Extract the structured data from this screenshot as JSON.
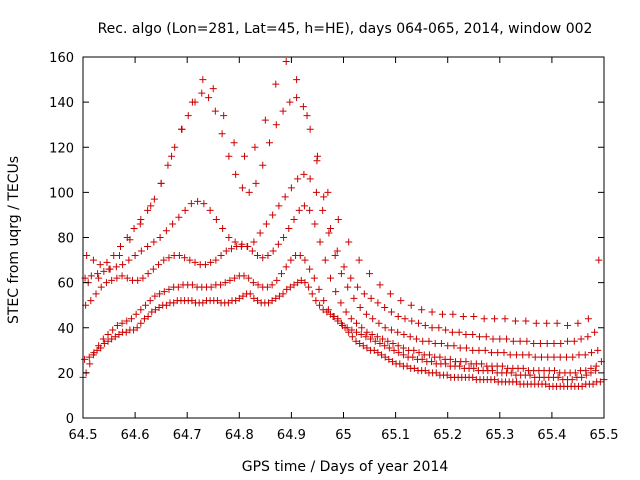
{
  "chart_data": {
    "type": "scatter",
    "title": "Rec. algo (Lon=281, Lat=45, h=HE), days 064-065, 2014, window 002",
    "xlabel": "GPS time / Days of year 2014",
    "ylabel": "STEC from uqrg / TECUs",
    "xlim": [
      64.5,
      65.5
    ],
    "ylim": [
      0,
      160
    ],
    "x_ticks": [
      "64.5",
      "64.6",
      "64.7",
      "64.8",
      "64.9",
      "65",
      "65.1",
      "65.2",
      "65.3",
      "65.4",
      "65.5"
    ],
    "y_ticks": [
      "0",
      "20",
      "40",
      "60",
      "80",
      "100",
      "120",
      "140",
      "160"
    ],
    "grid": false,
    "marker": "plus",
    "marker_color": "#cc0000",
    "series": [
      {
        "x": [
          64.5,
          64.506,
          64.513,
          64.52,
          64.527,
          64.534,
          64.541,
          64.548,
          64.555,
          64.562,
          64.569,
          64.576,
          64.583,
          64.59,
          64.597,
          64.604,
          64.611,
          64.618,
          64.625,
          64.632,
          64.639,
          64.646,
          64.653,
          64.66,
          64.667,
          64.674,
          64.681,
          64.688,
          64.695,
          64.702,
          64.709,
          64.716,
          64.723,
          64.73,
          64.737,
          64.744,
          64.751,
          64.758,
          64.765,
          64.772,
          64.779,
          64.786,
          64.793,
          64.8,
          64.807,
          64.814,
          64.821,
          64.828,
          64.835,
          64.842,
          64.849,
          64.856,
          64.863,
          64.87,
          64.877,
          64.884,
          64.891,
          64.898,
          64.905,
          64.912,
          64.919,
          64.926,
          64.933,
          64.94,
          64.947,
          64.954,
          64.961,
          64.968,
          64.975,
          64.982,
          64.989,
          64.996,
          65.003,
          65.01,
          65.017,
          65.024,
          65.031,
          65.038,
          65.045,
          65.052,
          65.059,
          65.066,
          65.073,
          65.08,
          65.087,
          65.094,
          65.101,
          65.108,
          65.115,
          65.122,
          65.129,
          65.136,
          65.143,
          65.15,
          65.157,
          65.164,
          65.171,
          65.178,
          65.185,
          65.192,
          65.199,
          65.206,
          65.213,
          65.22,
          65.227,
          65.234,
          65.241,
          65.248,
          65.255,
          65.262,
          65.269,
          65.276,
          65.283,
          65.29,
          65.297,
          65.304,
          65.311,
          65.318,
          65.325,
          65.332,
          65.339,
          65.346,
          65.353,
          65.36,
          65.367,
          65.374,
          65.381,
          65.388,
          65.395,
          65.402,
          65.409,
          65.416,
          65.423,
          65.43,
          65.437,
          65.444,
          65.451,
          65.458,
          65.465,
          65.472,
          65.479,
          65.486,
          65.493,
          65.5
        ],
        "y": [
          18,
          20,
          24,
          28,
          30,
          31,
          33,
          34,
          35,
          36,
          37,
          38,
          38,
          39,
          39,
          40,
          42,
          44,
          45,
          47,
          48,
          49,
          50,
          50,
          51,
          51,
          52,
          52,
          52,
          52,
          52,
          51,
          51,
          51,
          52,
          52,
          52,
          52,
          51,
          51,
          51,
          52,
          52,
          53,
          54,
          55,
          55,
          53,
          52,
          51,
          51,
          51,
          52,
          53,
          54,
          55,
          57,
          58,
          59,
          60,
          61,
          60,
          58,
          55,
          52,
          50,
          48,
          47,
          46,
          45,
          44,
          42,
          40,
          38,
          36,
          34,
          33,
          32,
          31,
          30,
          30,
          29,
          28,
          27,
          26,
          25,
          24,
          24,
          23,
          23,
          22,
          22,
          21,
          21,
          21,
          20,
          20,
          20,
          19,
          19,
          19,
          18,
          18,
          18,
          18,
          18,
          18,
          18,
          17,
          17,
          17,
          17,
          17,
          17,
          16,
          16,
          16,
          16,
          16,
          16,
          15,
          15,
          15,
          15,
          15,
          15,
          15,
          15,
          14,
          14,
          14,
          14,
          14,
          14,
          14,
          14,
          14,
          14,
          15,
          15,
          15,
          16,
          16,
          17
        ]
      },
      {
        "x": [
          64.503,
          64.512,
          64.521,
          64.53,
          64.539,
          64.548,
          64.557,
          64.566,
          64.575,
          64.584,
          64.593,
          64.602,
          64.611,
          64.62,
          64.629,
          64.638,
          64.647,
          64.656,
          64.665,
          64.674,
          64.683,
          64.692,
          64.701,
          64.71,
          64.719,
          64.728,
          64.737,
          64.746,
          64.755,
          64.764,
          64.773,
          64.782,
          64.791,
          64.8,
          64.809,
          64.818,
          64.827,
          64.836,
          64.845,
          64.854,
          64.863,
          64.872,
          64.881,
          64.89,
          64.899,
          64.908,
          64.917,
          64.926,
          64.935,
          64.944,
          64.953,
          64.962,
          64.971,
          64.98,
          64.989,
          64.998,
          65.007,
          65.016,
          65.025,
          65.034,
          65.043,
          65.052,
          65.061,
          65.07,
          65.079,
          65.088,
          65.097,
          65.106,
          65.115,
          65.124,
          65.133,
          65.142,
          65.151,
          65.16,
          65.169,
          65.178,
          65.187,
          65.196,
          65.205,
          65.214,
          65.223,
          65.232,
          65.241,
          65.25,
          65.259,
          65.268,
          65.277,
          65.286,
          65.295,
          65.304,
          65.313,
          65.322,
          65.331,
          65.34,
          65.349,
          65.358,
          65.367,
          65.376,
          65.385,
          65.394,
          65.403,
          65.412,
          65.421,
          65.43,
          65.439,
          65.448,
          65.457,
          65.466,
          65.475,
          65.484
        ],
        "y": [
          26,
          27,
          29,
          32,
          35,
          37,
          39,
          41,
          42,
          43,
          44,
          46,
          48,
          50,
          52,
          54,
          55,
          56,
          57,
          58,
          58,
          59,
          59,
          59,
          58,
          58,
          58,
          58,
          59,
          59,
          60,
          61,
          62,
          63,
          63,
          62,
          60,
          59,
          58,
          58,
          59,
          61,
          64,
          67,
          70,
          72,
          72,
          70,
          66,
          62,
          57,
          52,
          48,
          45,
          43,
          41,
          40,
          39,
          38,
          37,
          36,
          35,
          34,
          33,
          32,
          31,
          30,
          29,
          28,
          27,
          27,
          26,
          26,
          25,
          25,
          24,
          24,
          24,
          23,
          23,
          23,
          22,
          22,
          22,
          21,
          21,
          21,
          21,
          20,
          20,
          20,
          20,
          19,
          19,
          19,
          19,
          18,
          18,
          18,
          18,
          18,
          18,
          17,
          17,
          17,
          18,
          18,
          19,
          20,
          21
        ]
      },
      {
        "x": [
          64.505,
          64.515,
          64.525,
          64.535,
          64.545,
          64.555,
          64.565,
          64.575,
          64.585,
          64.595,
          64.605,
          64.615,
          64.625,
          64.635,
          64.645,
          64.655,
          64.665,
          64.675,
          64.685,
          64.695,
          64.705,
          64.715,
          64.725,
          64.735,
          64.745,
          64.755,
          64.765,
          64.775,
          64.785,
          64.795,
          64.805,
          64.815,
          64.825,
          64.835,
          64.845,
          64.855,
          64.865,
          64.875,
          64.885,
          64.895,
          64.905,
          64.915,
          64.925,
          64.935,
          64.945,
          64.955,
          64.965,
          64.975,
          64.985,
          64.995,
          65.005,
          65.015,
          65.025,
          65.035,
          65.045,
          65.055,
          65.065,
          65.075,
          65.085,
          65.095,
          65.105,
          65.115,
          65.125,
          65.135,
          65.145,
          65.155,
          65.165,
          65.175,
          65.185,
          65.195,
          65.205,
          65.215,
          65.225,
          65.235,
          65.245,
          65.255,
          65.265,
          65.275,
          65.285,
          65.295,
          65.305,
          65.315,
          65.325,
          65.335,
          65.345,
          65.355,
          65.365,
          65.375,
          65.385,
          65.395,
          65.405,
          65.415,
          65.425,
          65.435,
          65.445,
          65.455,
          65.465,
          65.475,
          65.485,
          65.495
        ],
        "y": [
          50,
          52,
          55,
          58,
          60,
          61,
          62,
          63,
          62,
          61,
          61,
          62,
          64,
          66,
          68,
          70,
          71,
          72,
          72,
          71,
          70,
          69,
          68,
          68,
          69,
          70,
          72,
          74,
          75,
          76,
          77,
          76,
          74,
          72,
          71,
          72,
          74,
          77,
          80,
          84,
          88,
          92,
          94,
          92,
          86,
          78,
          70,
          62,
          56,
          51,
          47,
          44,
          42,
          40,
          38,
          37,
          36,
          35,
          34,
          33,
          32,
          31,
          30,
          30,
          29,
          28,
          28,
          27,
          27,
          26,
          26,
          25,
          25,
          25,
          24,
          24,
          24,
          23,
          23,
          23,
          23,
          22,
          22,
          22,
          22,
          21,
          21,
          21,
          21,
          21,
          21,
          20,
          20,
          20,
          20,
          21,
          21,
          22,
          23,
          25
        ]
      },
      {
        "x": [
          64.504,
          64.516,
          64.528,
          64.54,
          64.552,
          64.564,
          64.576,
          64.588,
          64.6,
          64.612,
          64.624,
          64.636,
          64.648,
          64.66,
          64.672,
          64.684,
          64.696,
          64.708,
          64.72,
          64.732,
          64.744,
          64.756,
          64.768,
          64.78,
          64.792,
          64.804,
          64.816,
          64.828,
          64.84,
          64.852,
          64.864,
          64.876,
          64.888,
          64.9,
          64.912,
          64.924,
          64.936,
          64.948,
          64.96,
          64.972,
          64.984,
          64.996,
          65.008,
          65.02,
          65.032,
          65.044,
          65.056,
          65.068,
          65.08,
          65.092,
          65.104,
          65.116,
          65.128,
          65.14,
          65.152,
          65.164,
          65.176,
          65.188,
          65.2,
          65.212,
          65.224,
          65.236,
          65.248,
          65.26,
          65.272,
          65.284,
          65.296,
          65.308,
          65.32,
          65.332,
          65.344,
          65.356,
          65.368,
          65.38,
          65.392,
          65.404,
          65.416,
          65.428,
          65.44,
          65.452,
          65.464,
          65.476,
          65.488
        ],
        "y": [
          62,
          63,
          64,
          65,
          66,
          67,
          68,
          70,
          72,
          74,
          76,
          78,
          80,
          83,
          86,
          89,
          92,
          95,
          96,
          95,
          92,
          88,
          84,
          80,
          78,
          76,
          76,
          78,
          82,
          86,
          90,
          94,
          98,
          102,
          106,
          108,
          106,
          100,
          92,
          82,
          72,
          64,
          58,
          53,
          49,
          46,
          44,
          42,
          40,
          39,
          38,
          37,
          36,
          35,
          34,
          34,
          33,
          33,
          32,
          32,
          31,
          31,
          30,
          30,
          30,
          29,
          29,
          29,
          28,
          28,
          28,
          28,
          27,
          27,
          27,
          27,
          27,
          27,
          27,
          28,
          28,
          29,
          30
        ]
      },
      {
        "x": [
          64.507,
          64.52,
          64.533,
          64.546,
          64.559,
          64.572,
          64.585,
          64.598,
          64.611,
          64.624,
          64.637,
          64.65,
          64.663,
          64.676,
          64.689,
          64.702,
          64.715,
          64.728,
          64.741,
          64.754,
          64.767,
          64.78,
          64.793,
          64.806,
          64.819,
          64.832,
          64.845,
          64.858,
          64.871,
          64.884,
          64.897,
          64.91,
          64.923,
          64.936,
          64.949,
          64.962,
          64.975,
          64.988,
          65.001,
          65.014,
          65.027,
          65.04,
          65.053,
          65.066,
          65.079,
          65.092,
          65.105,
          65.118,
          65.131,
          65.144,
          65.157,
          65.17,
          65.183,
          65.196,
          65.209,
          65.222,
          65.235,
          65.248,
          65.261,
          65.274,
          65.287,
          65.3,
          65.313,
          65.326,
          65.339,
          65.352,
          65.365,
          65.378,
          65.391,
          65.404,
          65.417,
          65.43,
          65.443,
          65.456,
          65.469,
          65.482
        ],
        "y": [
          72,
          70,
          68,
          69,
          72,
          76,
          80,
          84,
          88,
          92,
          97,
          104,
          112,
          120,
          128,
          134,
          140,
          144,
          142,
          136,
          126,
          116,
          108,
          102,
          100,
          104,
          112,
          122,
          130,
          136,
          140,
          142,
          138,
          128,
          114,
          98,
          84,
          74,
          67,
          62,
          58,
          55,
          53,
          51,
          49,
          47,
          45,
          44,
          43,
          42,
          41,
          40,
          40,
          39,
          38,
          38,
          37,
          37,
          36,
          36,
          35,
          35,
          35,
          34,
          34,
          34,
          33,
          33,
          33,
          33,
          33,
          34,
          34,
          35,
          36,
          38
        ]
      },
      {
        "x": [
          64.51,
          64.53,
          64.55,
          64.57,
          64.59,
          64.61,
          64.63,
          64.65,
          64.67,
          64.69,
          64.71,
          64.73,
          64.75,
          64.77,
          64.79,
          64.81,
          64.83,
          64.85,
          64.87,
          64.89,
          64.91,
          64.93,
          64.95,
          64.97,
          64.99,
          65.01,
          65.03,
          65.05,
          65.07,
          65.09,
          65.11,
          65.13,
          65.15,
          65.17,
          65.19,
          65.21,
          65.23,
          65.25,
          65.27,
          65.29,
          65.31,
          65.33,
          65.35,
          65.37,
          65.39,
          65.41,
          65.43,
          65.45,
          65.47,
          65.49
        ],
        "y": [
          60,
          62,
          66,
          72,
          79,
          86,
          94,
          104,
          116,
          128,
          140,
          150,
          146,
          134,
          122,
          116,
          120,
          132,
          148,
          158,
          150,
          134,
          116,
          100,
          88,
          78,
          70,
          64,
          59,
          55,
          52,
          50,
          48,
          47,
          46,
          46,
          45,
          45,
          44,
          44,
          44,
          43,
          43,
          42,
          42,
          42,
          41,
          42,
          44,
          70
        ]
      }
    ]
  }
}
